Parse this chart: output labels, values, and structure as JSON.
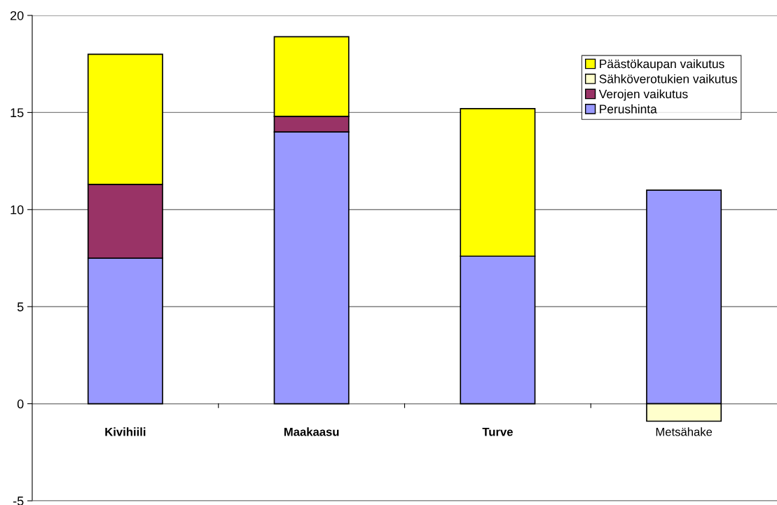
{
  "chart_data": {
    "type": "bar",
    "stacked": true,
    "categories": [
      "Kivihiili",
      "Maakaasu",
      "Turve",
      "Metsähake"
    ],
    "series": [
      {
        "name": "Perushinta",
        "color": "#9999ff",
        "values": [
          7.5,
          14.0,
          7.6,
          11.0
        ]
      },
      {
        "name": "Verojen vaikutus",
        "color": "#993366",
        "values": [
          3.8,
          0.8,
          null,
          null
        ]
      },
      {
        "name": "Sähköverotukien vaikutus",
        "color": "#ffffcc",
        "values": [
          null,
          null,
          null,
          -0.9
        ]
      },
      {
        "name": "Päästökaupan vaikutus",
        "color": "#ffff00",
        "values": [
          6.7,
          4.1,
          7.6,
          null
        ]
      }
    ],
    "ylim": [
      -5,
      20
    ],
    "yticks": [
      -5,
      0,
      5,
      10,
      15,
      20
    ],
    "grid": "y",
    "legend": "top right"
  }
}
